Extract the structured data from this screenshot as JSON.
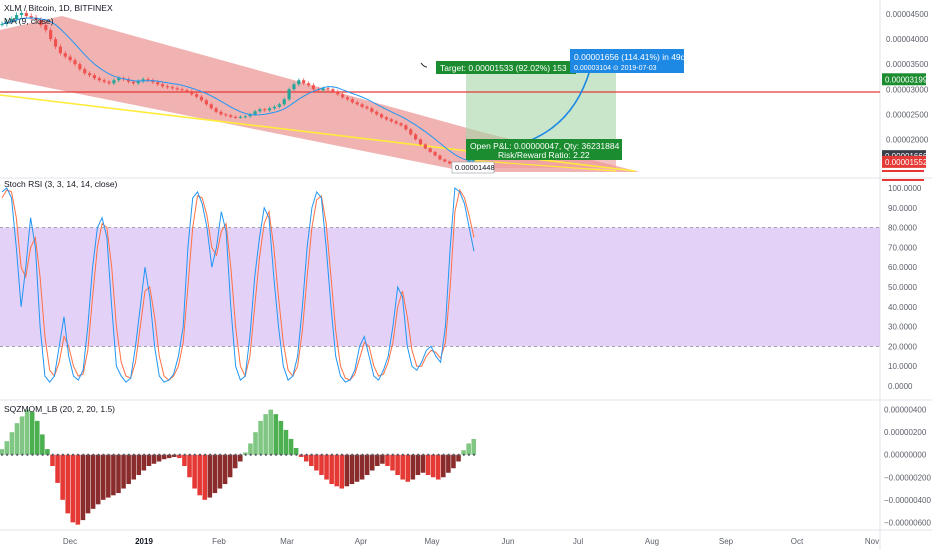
{
  "main_title": "XLM / Bitcoin, 1D, BITFINEX",
  "ma_label": "MA (9, close)",
  "stoch_label": "Stoch RSI (3, 3, 14, 14, close)",
  "sqz_label": "SQZMOM_LB (20, 2, 20, 1.5)",
  "colors": {
    "channel": "#e57373",
    "resistance": "#e53935",
    "support": "#ffeb3b",
    "target_zone": "#a5d6a7",
    "stop_zone": "#ef9a9a",
    "projection": "#1e88e5",
    "stoch_band": "#d6b8f5",
    "stoch_k": "#2196f3",
    "stoch_d": "#ff7043",
    "sqz_pos": "#4caf50",
    "sqz_pos_light": "#81c784",
    "sqz_neg": "#e53935",
    "sqz_neg_dark": "#8b2c2c"
  },
  "trade": {
    "target_text": "Target: 0.00001533 (92.02%) 153",
    "projection_line1": "0.00001656 (114.41%) in 49d",
    "projection_line2": "0.00003104  ⊙ 2019-07-03",
    "open_text": "Open P&L: 0.00000047, Qty: 36231884",
    "ratio_text": "Risk/Reward Ratio: 2.22",
    "entry_text": "0.00001448"
  },
  "price_tags": [
    {
      "text": "0.00003199",
      "value": 3.199e-05,
      "color": "#1b8c2f"
    },
    {
      "text": "0.00001666",
      "value": 1.666e-05,
      "color": "#3a3e4a"
    },
    {
      "text": "0.00001552",
      "value": 1.552e-05,
      "color": "#e53935"
    }
  ],
  "chart_data": [
    {
      "type": "line",
      "name": "price",
      "y_axis_ticks": [
        "0.00004500",
        "0.00004000",
        "0.00003500",
        "0.00003000",
        "0.00002500",
        "0.00002000"
      ],
      "y_axis_values": [
        4.5e-05,
        4e-05,
        3.5e-05,
        3e-05,
        2.5e-05,
        2e-05
      ],
      "ylim": [
        1.35e-05,
        4.7e-05
      ],
      "x_ticks": [
        "Dec",
        "2019",
        "Feb",
        "Mar",
        "Apr",
        "May",
        "Jun",
        "Jul",
        "Aug",
        "Sep",
        "Oct",
        "Nov"
      ],
      "close_series": [
        4.3e-05,
        4.35e-05,
        4.4e-05,
        4.48e-05,
        4.52e-05,
        4.46e-05,
        4.43e-05,
        4.38e-05,
        4.28e-05,
        4.18e-05,
        4e-05,
        3.85e-05,
        3.72e-05,
        3.65e-05,
        3.58e-05,
        3.5e-05,
        3.4e-05,
        3.32e-05,
        3.28e-05,
        3.22e-05,
        3.18e-05,
        3.15e-05,
        3.12e-05,
        3.18e-05,
        3.22e-05,
        3.2e-05,
        3.15e-05,
        3.12e-05,
        3.16e-05,
        3.2e-05,
        3.18e-05,
        3.14e-05,
        3.1e-05,
        3.06e-05,
        3.04e-05,
        3.02e-05,
        3e-05,
        2.98e-05,
        2.96e-05,
        2.9e-05,
        2.85e-05,
        2.78e-05,
        2.7e-05,
        2.62e-05,
        2.55e-05,
        2.5e-05,
        2.48e-05,
        2.45e-05,
        2.44e-05,
        2.45e-05,
        2.46e-05,
        2.5e-05,
        2.56e-05,
        2.6e-05,
        2.58e-05,
        2.62e-05,
        2.65e-05,
        2.7e-05,
        2.8e-05,
        3e-05,
        3.1e-05,
        3.18e-05,
        3.12e-05,
        3.08e-05,
        3e-05,
        2.98e-05,
        3.02e-05,
        3e-05,
        2.96e-05,
        2.9e-05,
        2.84e-05,
        2.8e-05,
        2.74e-05,
        2.7e-05,
        2.65e-05,
        2.62e-05,
        2.55e-05,
        2.5e-05,
        2.44e-05,
        2.4e-05,
        2.36e-05,
        2.32e-05,
        2.28e-05,
        2.2e-05,
        2.1e-05,
        2e-05,
        1.9e-05,
        1.82e-05,
        1.75e-05,
        1.68e-05,
        1.6e-05,
        1.56e-05,
        1.52e-05,
        1.5e-05,
        1.48e-05,
        1.52e-05,
        1.58e-05,
        1.66e-05
      ]
    },
    {
      "type": "line",
      "name": "stoch_rsi",
      "y_axis_ticks": [
        "100.0000",
        "90.0000",
        "80.0000",
        "70.0000",
        "60.0000",
        "50.0000",
        "40.0000",
        "30.0000",
        "20.0000",
        "10.0000",
        "0.0000"
      ],
      "y_axis_values": [
        100,
        90,
        80,
        70,
        60,
        50,
        40,
        30,
        20,
        10,
        0
      ],
      "ylim": [
        -2,
        102
      ],
      "band": [
        20,
        80
      ],
      "k_series": [
        98,
        100,
        95,
        70,
        40,
        60,
        85,
        70,
        30,
        5,
        2,
        5,
        20,
        35,
        15,
        5,
        3,
        8,
        30,
        60,
        80,
        85,
        75,
        40,
        10,
        5,
        2,
        4,
        20,
        40,
        60,
        45,
        20,
        5,
        2,
        3,
        6,
        15,
        30,
        70,
        95,
        98,
        92,
        80,
        60,
        70,
        88,
        78,
        40,
        10,
        3,
        5,
        25,
        55,
        75,
        90,
        85,
        55,
        30,
        10,
        3,
        5,
        15,
        40,
        70,
        90,
        98,
        95,
        70,
        40,
        15,
        5,
        2,
        3,
        8,
        20,
        25,
        15,
        5,
        3,
        8,
        15,
        30,
        50,
        45,
        20,
        10,
        8,
        12,
        18,
        20,
        15,
        12,
        30,
        70,
        100,
        98,
        92,
        80,
        68
      ],
      "d_series": [
        95,
        99,
        98,
        85,
        60,
        55,
        70,
        75,
        55,
        25,
        8,
        5,
        12,
        25,
        20,
        10,
        5,
        6,
        18,
        45,
        70,
        82,
        80,
        60,
        30,
        12,
        5,
        4,
        12,
        30,
        48,
        50,
        35,
        15,
        5,
        3,
        5,
        10,
        22,
        50,
        80,
        96,
        95,
        86,
        70,
        66,
        78,
        82,
        60,
        30,
        10,
        5,
        15,
        40,
        65,
        82,
        88,
        70,
        45,
        22,
        8,
        5,
        10,
        28,
        55,
        80,
        94,
        96,
        82,
        55,
        28,
        10,
        4,
        3,
        6,
        14,
        22,
        20,
        10,
        5,
        6,
        12,
        22,
        40,
        48,
        35,
        18,
        10,
        10,
        15,
        18,
        17,
        14,
        22,
        50,
        88,
        99,
        95,
        86,
        75
      ]
    },
    {
      "type": "bar",
      "name": "squeeze_momentum",
      "y_axis_ticks": [
        "0.00000400",
        "0.00000200",
        "0.00000000",
        "−0.00000200",
        "−0.00000400",
        "−0.00000600"
      ],
      "y_axis_values": [
        4e-06,
        2e-06,
        0,
        -2e-06,
        -4e-06,
        -6e-06
      ],
      "ylim": [
        -6.5e-06,
        4.5e-06
      ],
      "values": [
        5e-07,
        1.2e-06,
        2e-06,
        2.8e-06,
        3.4e-06,
        4e-06,
        3.8e-06,
        3e-06,
        1.8e-06,
        5e-07,
        -1e-06,
        -2.5e-06,
        -4e-06,
        -5.2e-06,
        -6e-06,
        -6.2e-06,
        -5.8e-06,
        -5.2e-06,
        -4.8e-06,
        -4.4e-06,
        -4e-06,
        -3.8e-06,
        -3.6e-06,
        -3.4e-06,
        -3e-06,
        -2.6e-06,
        -2.2e-06,
        -1.8e-06,
        -1.4e-06,
        -1e-06,
        -8e-07,
        -6e-07,
        -4e-07,
        -3e-07,
        -2e-07,
        -3e-07,
        -1e-06,
        -2e-06,
        -3e-06,
        -3.6e-06,
        -4e-06,
        -3.8e-06,
        -3.4e-06,
        -3e-06,
        -2.6e-06,
        -2e-06,
        -1.2e-06,
        -6e-07,
        2e-07,
        1e-06,
        2e-06,
        3e-06,
        3.6e-06,
        4e-06,
        3.6e-06,
        3e-06,
        2.2e-06,
        1.4e-06,
        6e-07,
        -2e-07,
        -6e-07,
        -1e-06,
        -1.4e-06,
        -1.8e-06,
        -2.2e-06,
        -2.6e-06,
        -2.8e-06,
        -3e-06,
        -2.8e-06,
        -2.6e-06,
        -2.4e-06,
        -2.2e-06,
        -1.8e-06,
        -1.4e-06,
        -1e-06,
        -8e-07,
        -1e-06,
        -1.4e-06,
        -1.8e-06,
        -2.2e-06,
        -2.4e-06,
        -2.2e-06,
        -1.8e-06,
        -1.6e-06,
        -1.8e-06,
        -2e-06,
        -2.2e-06,
        -2e-06,
        -1.6e-06,
        -1.2e-06,
        -6e-07,
        4e-07,
        1e-06,
        1.4e-06
      ]
    }
  ]
}
